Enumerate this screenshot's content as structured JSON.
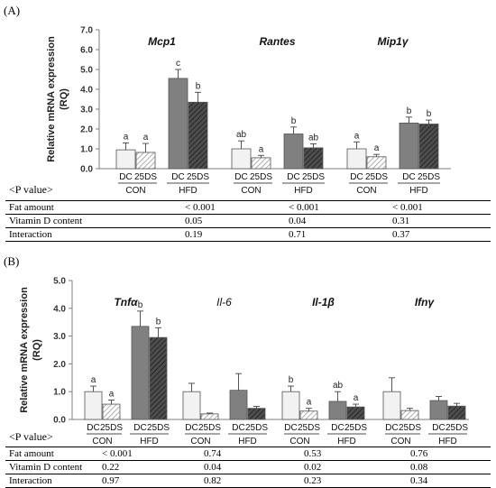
{
  "figure": {
    "panel_a_label": "(A)",
    "panel_b_label": "(B)",
    "pvalue_title": "<P value>"
  },
  "colors": {
    "DC_CON": "#f2f2f2",
    "25DS_CON": "#ffffff",
    "DC_HFD": "#808080",
    "25DS_HFD": "#4d4d4d",
    "edge": "#555555"
  },
  "chart_data": [
    {
      "type": "bar",
      "panel": "A",
      "ylabel": "Relative mRNA expression (RQ)",
      "ylim": [
        0,
        7
      ],
      "yticks": [
        "0.0",
        "1.0",
        "2.0",
        "3.0",
        "4.0",
        "5.0",
        "6.0",
        "7.0"
      ],
      "series": [
        {
          "name": "DC",
          "group": "CON"
        },
        {
          "name": "25DS",
          "group": "CON"
        },
        {
          "name": "DC",
          "group": "HFD"
        },
        {
          "name": "25DS",
          "group": "HFD"
        }
      ],
      "genes": [
        {
          "name": "Mcp1",
          "bold": true,
          "values": [
            0.95,
            0.82,
            4.55,
            3.35
          ],
          "errors": [
            0.35,
            0.45,
            0.45,
            0.5
          ],
          "letters": [
            "a",
            "a",
            "c",
            "b"
          ]
        },
        {
          "name": "Rantes",
          "bold": true,
          "values": [
            1.0,
            0.55,
            1.75,
            1.05
          ],
          "errors": [
            0.4,
            0.12,
            0.35,
            0.2
          ],
          "letters": [
            "ab",
            "a",
            "b",
            "ab"
          ]
        },
        {
          "name": "Mip1γ",
          "bold": true,
          "values": [
            1.0,
            0.6,
            2.3,
            2.25
          ],
          "errors": [
            0.35,
            0.12,
            0.3,
            0.2
          ],
          "letters": [
            "a",
            "a",
            "b",
            "b"
          ]
        }
      ],
      "x_sub_labels": [
        "DC",
        "25DS",
        "DC",
        "25DS"
      ],
      "x_group_labels": [
        "CON",
        "HFD"
      ],
      "pvalues": {
        "rows": [
          "Fat amount",
          "Vitamin D content",
          "Interaction"
        ],
        "values": [
          [
            "< 0.001",
            "< 0.001",
            "< 0.001"
          ],
          [
            "0.05",
            "0.04",
            "0.31"
          ],
          [
            "0.19",
            "0.71",
            "0.37"
          ]
        ]
      }
    },
    {
      "type": "bar",
      "panel": "B",
      "ylabel": "Relative mRNA expression (RQ)",
      "ylim": [
        0,
        5
      ],
      "yticks": [
        "0.0",
        "1.0",
        "2.0",
        "3.0",
        "4.0",
        "5.0"
      ],
      "series": [
        {
          "name": "DC",
          "group": "CON"
        },
        {
          "name": "25DS",
          "group": "CON"
        },
        {
          "name": "DC",
          "group": "HFD"
        },
        {
          "name": "25DS",
          "group": "HFD"
        }
      ],
      "genes": [
        {
          "name": "Tnfα",
          "bold": true,
          "values": [
            1.0,
            0.55,
            3.35,
            2.95
          ],
          "errors": [
            0.2,
            0.15,
            0.55,
            0.35
          ],
          "letters": [
            "a",
            "a",
            "b",
            "b"
          ]
        },
        {
          "name": "Il-6",
          "bold": false,
          "values": [
            1.0,
            0.2,
            1.05,
            0.4
          ],
          "errors": [
            0.3,
            0.03,
            0.6,
            0.07
          ],
          "letters": [
            "",
            "",
            "",
            ""
          ]
        },
        {
          "name": "Il-1β",
          "bold": true,
          "values": [
            1.0,
            0.3,
            0.65,
            0.45
          ],
          "errors": [
            0.2,
            0.1,
            0.35,
            0.1
          ],
          "letters": [
            "b",
            "a",
            "ab",
            "a"
          ]
        },
        {
          "name": "Ifnγ",
          "bold": true,
          "values": [
            1.0,
            0.32,
            0.68,
            0.48
          ],
          "errors": [
            0.5,
            0.08,
            0.15,
            0.1
          ],
          "letters": [
            "",
            "",
            "",
            ""
          ]
        }
      ],
      "x_sub_labels": [
        "DC",
        "25DS",
        "DC",
        "25DS"
      ],
      "x_group_labels": [
        "CON",
        "HFD"
      ],
      "pvalues": {
        "rows": [
          "Fat amount",
          "Vitamin D content",
          "Interaction"
        ],
        "values": [
          [
            "< 0.001",
            "0.74",
            "0.53",
            "0.76"
          ],
          [
            "0.22",
            "0.04",
            "0.02",
            "0.08"
          ],
          [
            "0.97",
            "0.82",
            "0.23",
            "0.34"
          ]
        ]
      }
    }
  ]
}
